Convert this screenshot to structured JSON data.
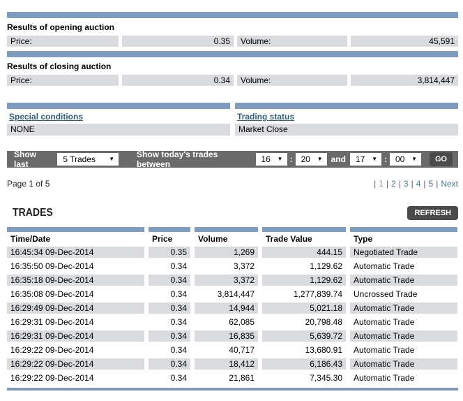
{
  "colors": {
    "bar-blue": "#7E9CC0",
    "cell-gray": "#D9DBDE",
    "toolbar-gray": "#6A6A6A",
    "button-dark": "#4A4A4A",
    "link-blue": "#2F617F",
    "page-link-blue": "#44759B",
    "pipe-purple": "#6B4E82",
    "current-page-gray": "#9B9B9B"
  },
  "icons": {
    "dropdown_caret": "▼"
  },
  "opening_auction": {
    "title": "Results of opening auction",
    "price_label": "Price:",
    "price_value": "0.35",
    "volume_label": "Volume:",
    "volume_value": "45,591"
  },
  "closing_auction": {
    "title": "Results of closing auction",
    "price_label": "Price:",
    "price_value": "0.34",
    "volume_label": "Volume:",
    "volume_value": "3,814,447"
  },
  "conditions": {
    "special_label": "Special conditions",
    "special_value": "NONE",
    "trading_label": "Trading status",
    "trading_value": "Market Close"
  },
  "toolbar": {
    "show_last_label": "Show last",
    "show_last_value": "5 Trades",
    "between_label": "Show today's trades between",
    "from_hour": "16",
    "from_minute": "20",
    "and_label": "and",
    "to_hour": "17",
    "to_minute": "00",
    "colon": ":",
    "go_label": "GO"
  },
  "pagination": {
    "page_info": "Page 1 of 5",
    "separator": "|",
    "items": [
      {
        "label": "1",
        "current": true
      },
      {
        "label": "2",
        "current": false
      },
      {
        "label": "3",
        "current": false
      },
      {
        "label": "4",
        "current": false
      },
      {
        "label": "5",
        "current": false
      },
      {
        "label": "Next",
        "current": false
      }
    ]
  },
  "trades": {
    "title": "TRADES",
    "refresh_label": "REFRESH",
    "columns": [
      "Time/Date",
      "Price",
      "Volume",
      "Trade Value",
      "Type"
    ],
    "rows": [
      [
        "16:45:34 09-Dec-2014",
        "0.35",
        "1,269",
        "444.15",
        "Negotiated Trade"
      ],
      [
        "16:35:50 09-Dec-2014",
        "0.34",
        "3,372",
        "1,129.62",
        "Automatic Trade"
      ],
      [
        "16:35:18 09-Dec-2014",
        "0.34",
        "3,372",
        "1,129.62",
        "Automatic Trade"
      ],
      [
        "16:35:08 09-Dec-2014",
        "0.34",
        "3,814,447",
        "1,277,839.74",
        "Uncrossed Trade"
      ],
      [
        "16:29:49 09-Dec-2014",
        "0.34",
        "14,944",
        "5,021.18",
        "Automatic Trade"
      ],
      [
        "16:29:31 09-Dec-2014",
        "0.34",
        "62,085",
        "20,798.48",
        "Automatic Trade"
      ],
      [
        "16:29:31 09-Dec-2014",
        "0.34",
        "16,835",
        "5,639.72",
        "Automatic Trade"
      ],
      [
        "16:29:22 09-Dec-2014",
        "0.34",
        "40,717",
        "13,680.91",
        "Automatic Trade"
      ],
      [
        "16:29:22 09-Dec-2014",
        "0.34",
        "18,412",
        "6,186.43",
        "Automatic Trade"
      ],
      [
        "16:29:22 09-Dec-2014",
        "0.34",
        "21,861",
        "7,345.30",
        "Automatic Trade"
      ]
    ]
  }
}
